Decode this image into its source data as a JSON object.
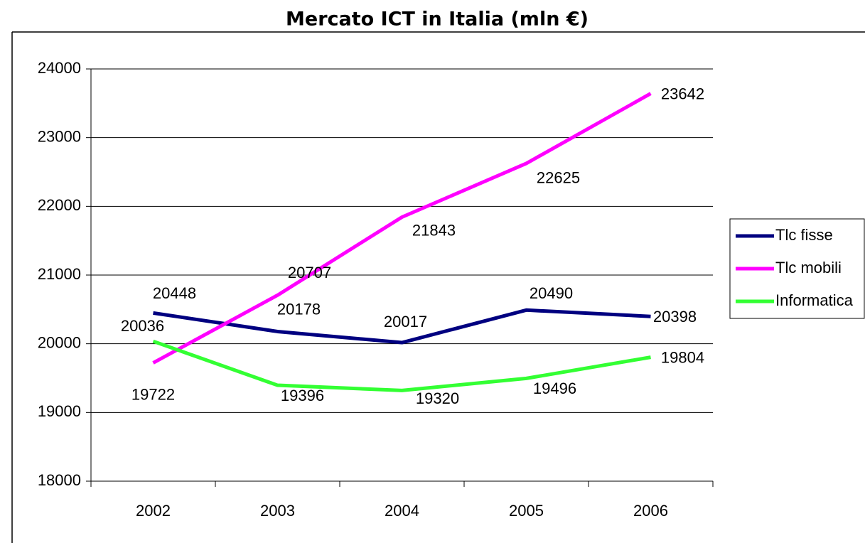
{
  "chart_data": {
    "type": "line",
    "title": "Mercato ICT in Italia (mln €)",
    "categories": [
      "2002",
      "2003",
      "2004",
      "2005",
      "2006"
    ],
    "series": [
      {
        "name": "Tlc fisse",
        "color": "#000080",
        "values": [
          20448,
          20178,
          20017,
          20490,
          20398
        ]
      },
      {
        "name": "Tlc mobili",
        "color": "#ff00ff",
        "values": [
          19722,
          20707,
          21843,
          22625,
          23642
        ]
      },
      {
        "name": "Informatica",
        "color": "#33ff33",
        "values": [
          20036,
          19396,
          19320,
          19496,
          19804
        ]
      }
    ],
    "ylim": [
      18000,
      24000
    ],
    "yticks": [
      18000,
      19000,
      20000,
      21000,
      22000,
      23000,
      24000
    ],
    "grid": true,
    "legend": "right"
  }
}
